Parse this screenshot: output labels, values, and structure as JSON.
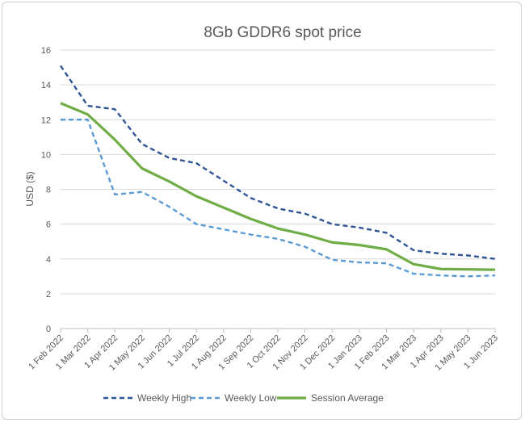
{
  "chart_data": {
    "type": "line",
    "title": "8Gb GDDR6 spot price",
    "xlabel": "",
    "ylabel": "USD ($)",
    "ylim": [
      0,
      16
    ],
    "yticks": [
      0,
      2,
      4,
      6,
      8,
      10,
      12,
      14,
      16
    ],
    "grid": true,
    "legend": "bottom",
    "categories": [
      "1 Feb 2022",
      "1 Mar 2022",
      "1 Apr 2022",
      "1 May 2022",
      "1 Jun 2022",
      "1 Jul 2022",
      "1 Aug 2022",
      "1 Sep 2022",
      "1 Oct 2022",
      "1 Nov 2022",
      "1 Dec 2022",
      "1 Jan 2023",
      "1 Feb 2023",
      "1 Mar 2023",
      "1 Apr 2023",
      "1 May 2023",
      "1 Jun 2023"
    ],
    "series": [
      {
        "name": "Weekly High",
        "color": "#2f5597",
        "style": "dashed",
        "values": [
          15.1,
          12.8,
          12.6,
          10.6,
          9.8,
          9.5,
          8.5,
          7.5,
          6.9,
          6.6,
          6.0,
          5.8,
          5.5,
          4.5,
          4.3,
          4.2,
          4.0
        ]
      },
      {
        "name": "Weekly Low",
        "color": "#5b9bd5",
        "style": "dashed",
        "values": [
          12.0,
          12.0,
          7.7,
          7.85,
          7.0,
          6.0,
          5.7,
          5.4,
          5.15,
          4.7,
          3.95,
          3.8,
          3.75,
          3.15,
          3.05,
          3.0,
          3.05
        ]
      },
      {
        "name": "Session Average",
        "color": "#70ad47",
        "style": "solid",
        "values": [
          12.95,
          12.3,
          10.85,
          9.2,
          8.45,
          7.6,
          6.95,
          6.3,
          5.75,
          5.4,
          4.95,
          4.8,
          4.55,
          3.7,
          3.42,
          3.4,
          3.38
        ]
      }
    ]
  }
}
